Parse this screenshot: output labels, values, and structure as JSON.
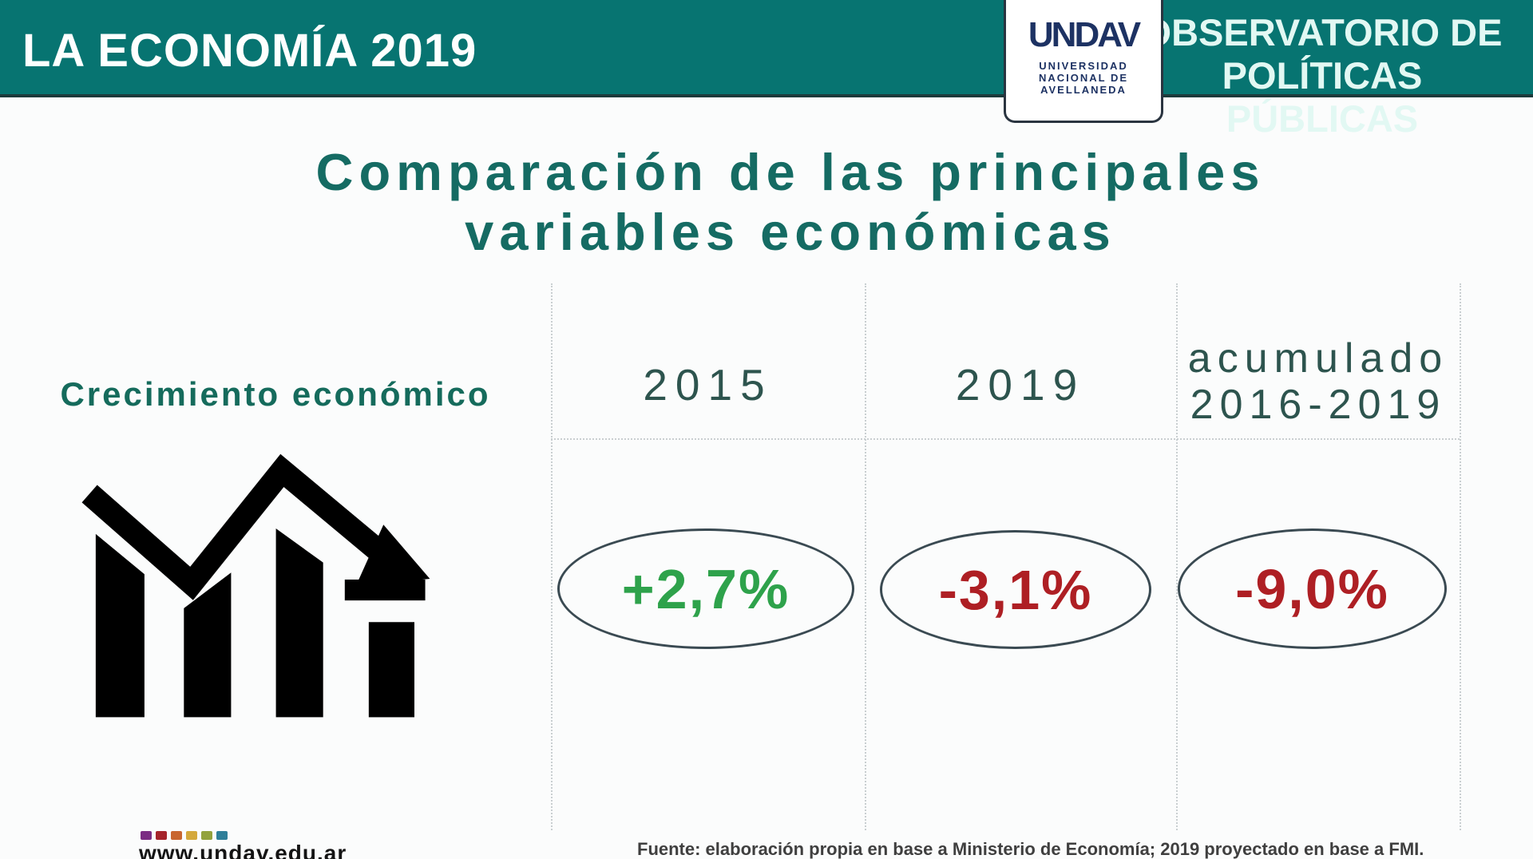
{
  "header": {
    "bar_title": "LA ECONOMÍA 2019",
    "observatory_line1": "OBSERVATORIO DE",
    "observatory_line2": "POLÍTICAS PÚBLICAS",
    "logo": {
      "mark": "UNDAV",
      "line1": "UNIVERSIDAD",
      "line2": "NACIONAL DE",
      "line3": "AVELLANEDA"
    }
  },
  "title": {
    "line1": "Comparación de las principales",
    "line2": "variables económicas"
  },
  "table": {
    "row_label": "Crecimiento económico",
    "columns": [
      {
        "label": "2015"
      },
      {
        "label": "2019"
      },
      {
        "label": "acumulado",
        "label2": "2016-2019"
      }
    ],
    "cells": [
      {
        "value": "+2,7%",
        "trend": "positive"
      },
      {
        "value": "-3,1%",
        "trend": "negative"
      },
      {
        "value": "-9,0%",
        "trend": "negative"
      }
    ]
  },
  "footer": {
    "url": "www.undav.edu.ar",
    "source": "Fuente: elaboración propia en base a Ministerio de Economía; 2019 proyectado en base a FMI.",
    "squares": [
      "#7b2d83",
      "#a5242b",
      "#c8662f",
      "#d4a93c",
      "#93a23c",
      "#2f7f99"
    ]
  },
  "colors": {
    "band_teal": "#077471",
    "title_teal": "#156b63",
    "header_teal": "#2d544e",
    "positive": "#2ea24b",
    "negative": "#ae1f24",
    "logo_navy": "#1d3263",
    "icon_black": "#000000"
  },
  "icon": {
    "name": "declining-bar-chart-with-arrow"
  },
  "chart_data": {
    "type": "table",
    "title": "Comparación de las principales variables económicas",
    "row_label": "Crecimiento económico",
    "columns": [
      "2015",
      "2019",
      "acumulado 2016-2019"
    ],
    "values": [
      2.7,
      -3.1,
      -9.0
    ],
    "unit": "%",
    "value_labels": [
      "+2,7%",
      "-3,1%",
      "-9,0%"
    ],
    "source": "Fuente: elaboración propia en base a Ministerio de Economía; 2019 proyectado en base a FMI."
  }
}
